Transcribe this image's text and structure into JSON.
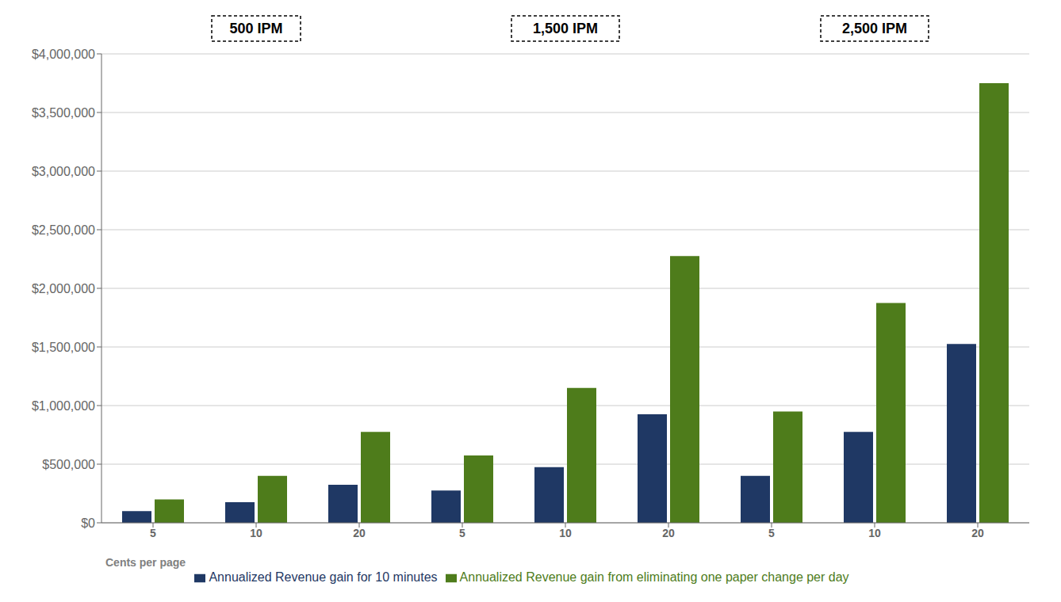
{
  "chart_data": {
    "type": "bar",
    "categories": [
      "5",
      "10",
      "20",
      "5",
      "10",
      "20",
      "5",
      "10",
      "20"
    ],
    "annotations": [
      "500 IPM",
      "1,500 IPM",
      "2,500 IPM"
    ],
    "xlabel": "Cents per page",
    "series": [
      {
        "name": "Annualized Revenue gain for 10 minutes",
        "color": "#1F3864",
        "values": [
          100000,
          175000,
          325000,
          275000,
          475000,
          925000,
          400000,
          775000,
          1525000
        ]
      },
      {
        "name": "Annualized Revenue gain from eliminating one paper change per day",
        "color": "#4E7C1B",
        "values": [
          200000,
          400000,
          775000,
          575000,
          1150000,
          2275000,
          950000,
          1875000,
          3750000
        ]
      }
    ],
    "ylim": [
      0,
      4000000
    ],
    "yticks": [
      {
        "value": 0,
        "label": "$0"
      },
      {
        "value": 500000,
        "label": "$500,000"
      },
      {
        "value": 1000000,
        "label": "$1,000,000"
      },
      {
        "value": 1500000,
        "label": "$1,500,000"
      },
      {
        "value": 2000000,
        "label": "$2,000,000"
      },
      {
        "value": 2500000,
        "label": "$2,500,000"
      },
      {
        "value": 3000000,
        "label": "$3,000,000"
      },
      {
        "value": 3500000,
        "label": "$3,500,000"
      },
      {
        "value": 4000000,
        "label": "$4,000,000"
      }
    ],
    "grid": true,
    "legend": "bottom"
  }
}
